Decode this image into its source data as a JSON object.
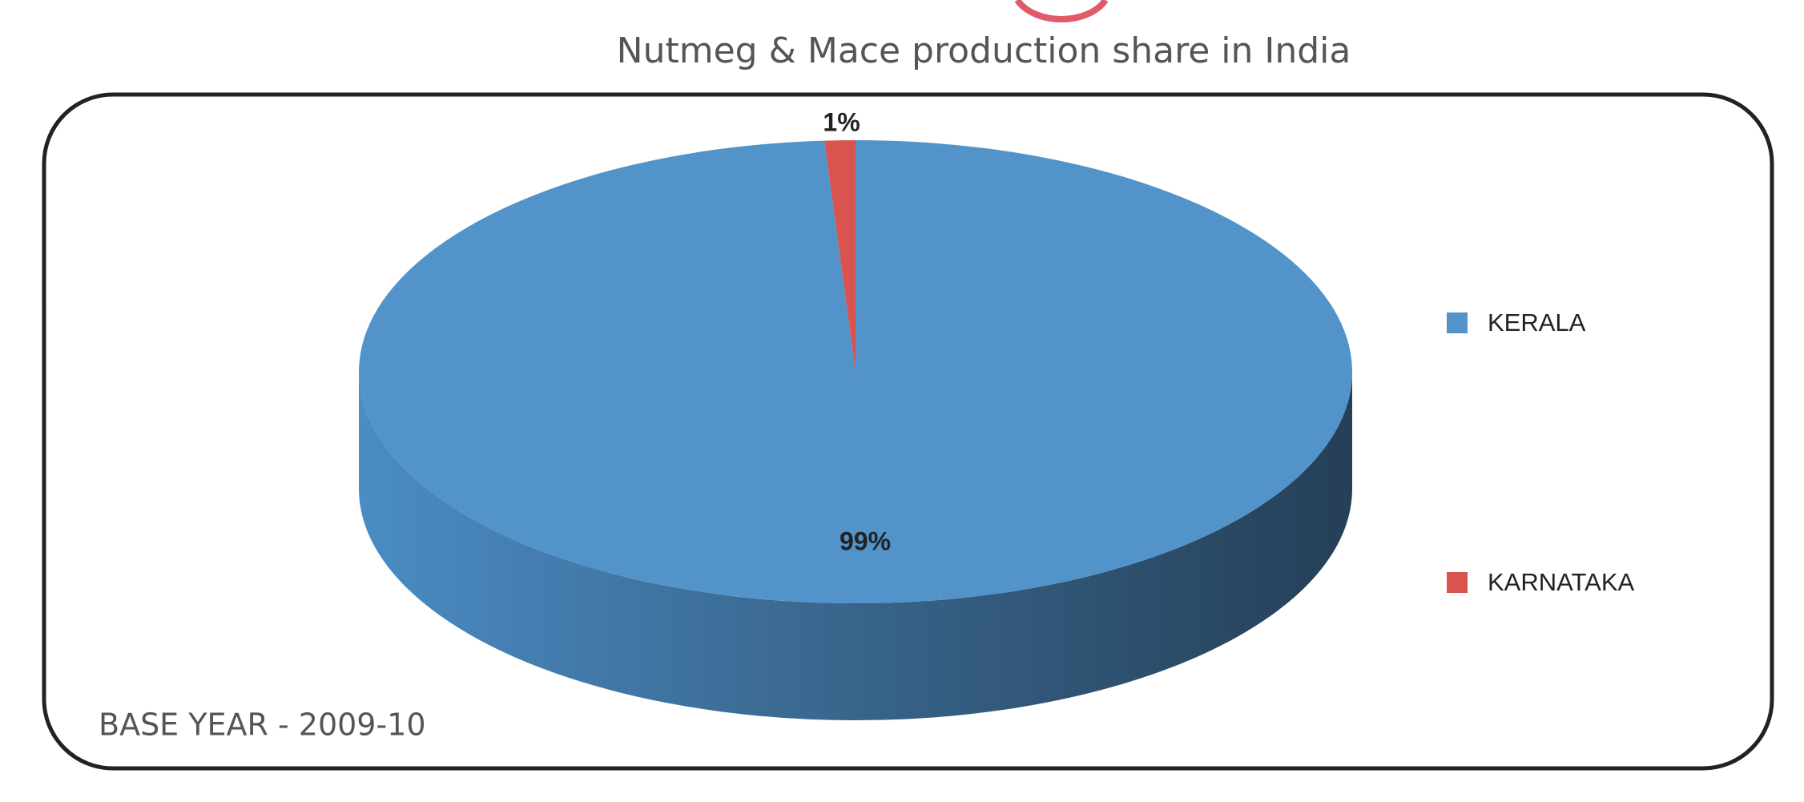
{
  "chart_data": {
    "type": "pie",
    "title": "Nutmeg & Mace production share in India",
    "categories": [
      "KERALA",
      "KARNATAKA"
    ],
    "values": [
      99,
      1
    ],
    "value_labels": [
      "99%",
      "1%"
    ],
    "colors": [
      "#5294c9",
      "#d9534f"
    ],
    "legend": "right",
    "annotation": "BASE YEAR - 2009-10"
  }
}
